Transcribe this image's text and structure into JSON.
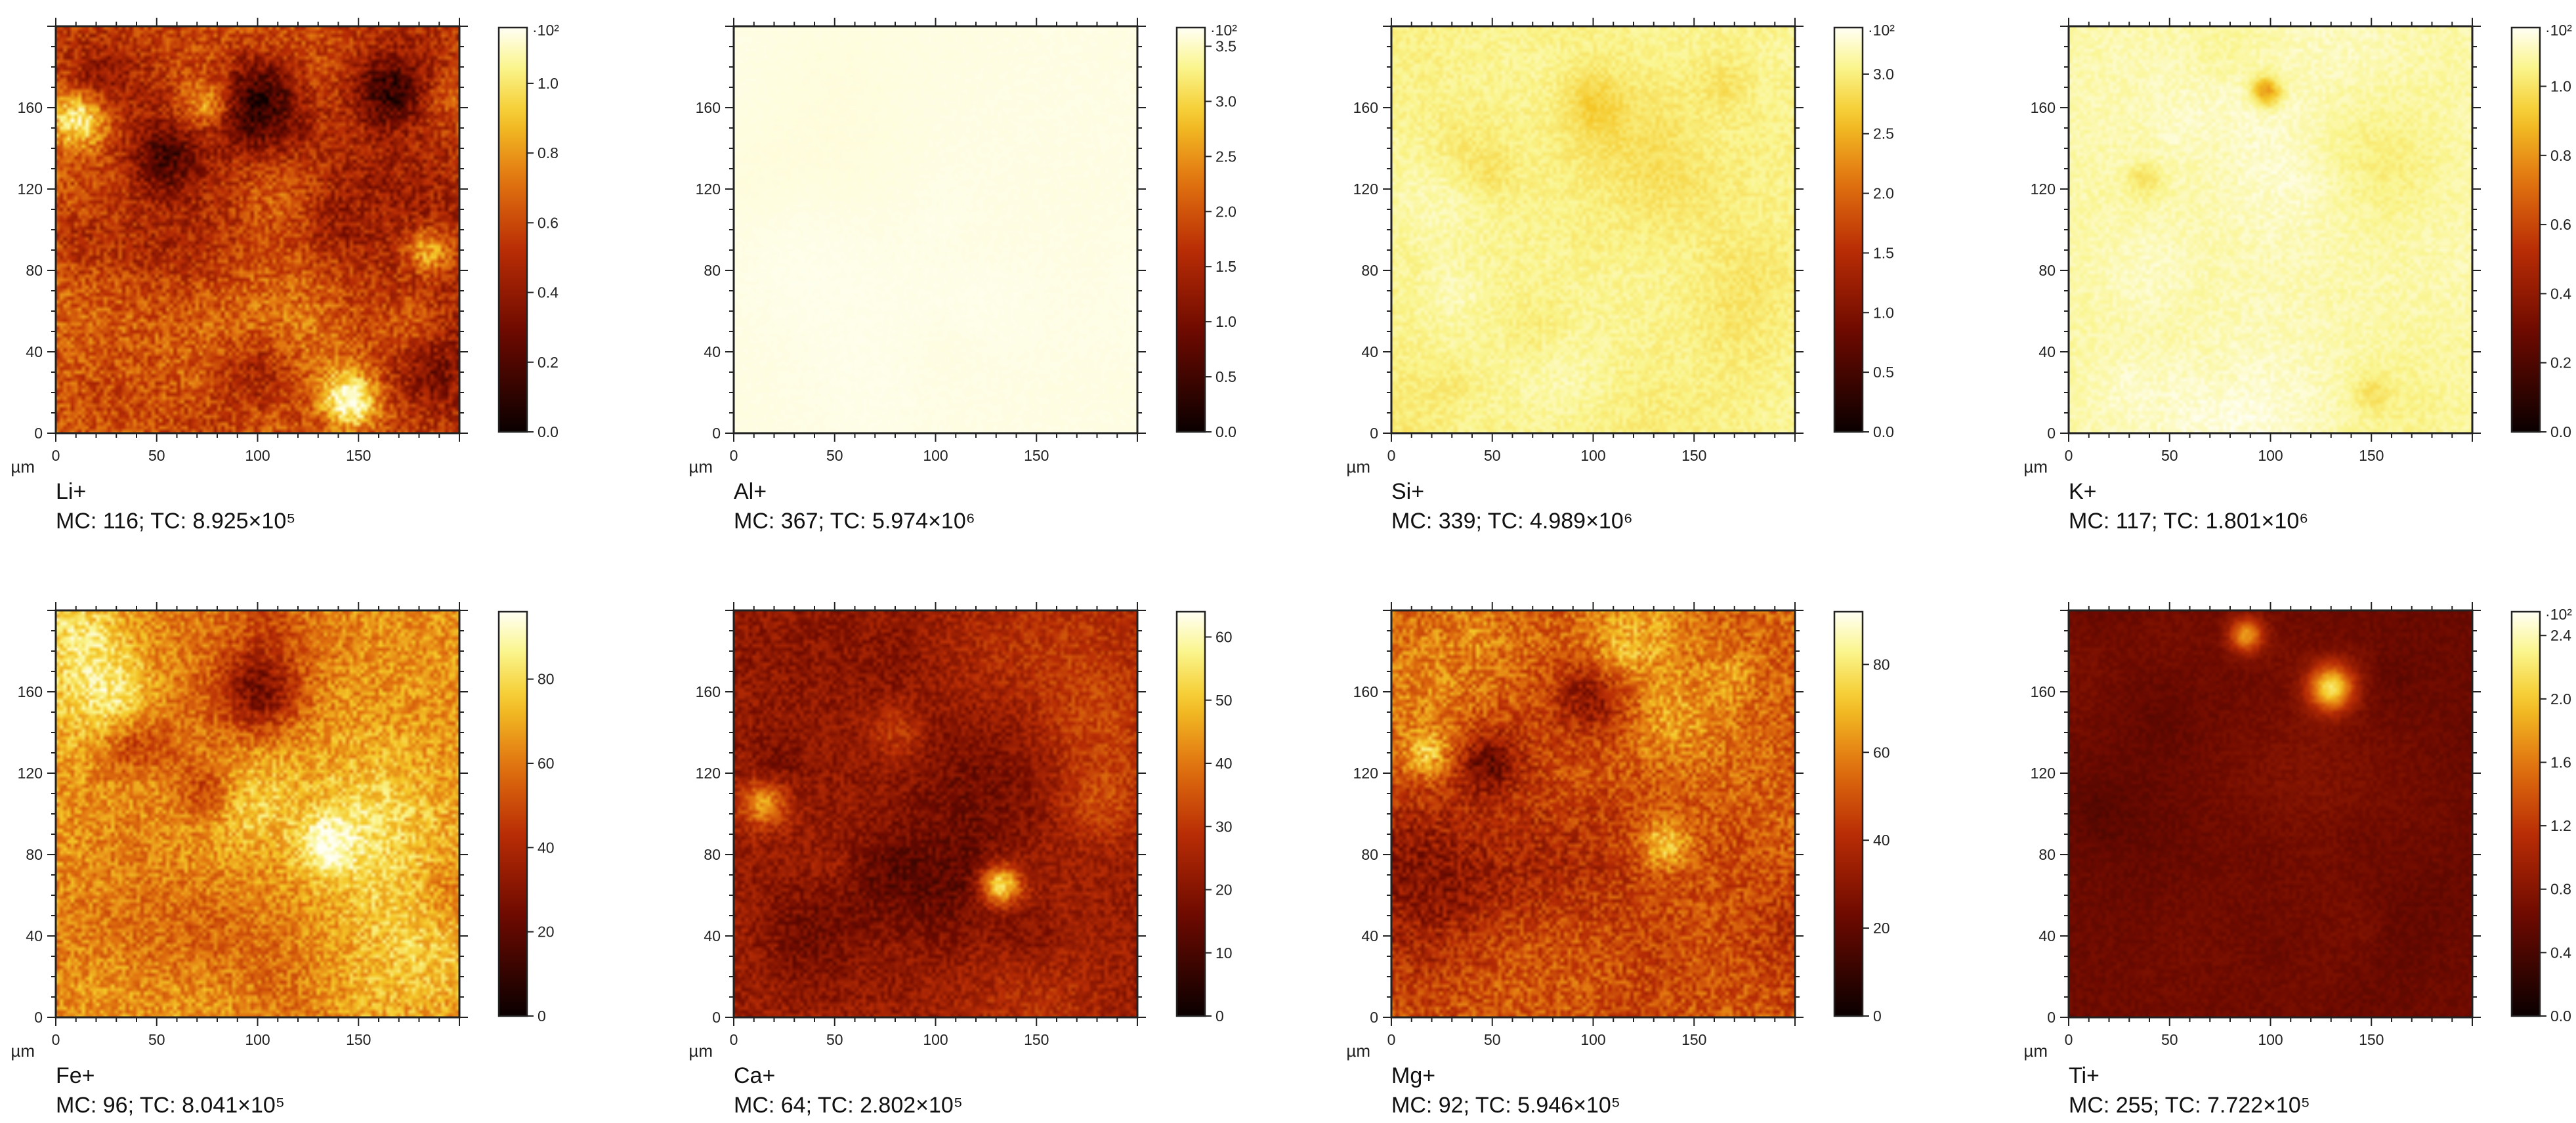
{
  "chart_data": [
    {
      "type": "heatmap",
      "label": "Li+",
      "stats": "MC:   116; TC: 8.925×10⁵",
      "unit": "µm",
      "x_ticks": [
        "0",
        "50",
        "100",
        "150"
      ],
      "y_ticks": [
        "0",
        "40",
        "80",
        "120",
        "160"
      ],
      "xlim": [
        0,
        200
      ],
      "ylim": [
        0,
        200
      ],
      "colorbar": {
        "min": 0,
        "max": 1.16,
        "ticks": [
          "0.0",
          "0.2",
          "0.4",
          "0.6",
          "0.8",
          "1.0"
        ],
        "exponent_label": "·10²"
      },
      "mean_level": 0.55,
      "texture": 0.32,
      "hotspots": [
        {
          "x": 12,
          "y": 155,
          "r": 10,
          "v": 0.45
        },
        {
          "x": 145,
          "y": 16,
          "r": 10,
          "v": 0.5
        },
        {
          "x": 185,
          "y": 90,
          "r": 8,
          "v": 0.35
        },
        {
          "x": 75,
          "y": 162,
          "r": 8,
          "v": 0.3
        },
        {
          "x": 100,
          "y": 160,
          "r": 16,
          "v": -0.35
        },
        {
          "x": 165,
          "y": 168,
          "r": 12,
          "v": -0.35
        },
        {
          "x": 55,
          "y": 135,
          "r": 12,
          "v": -0.3
        },
        {
          "x": 100,
          "y": 30,
          "r": 14,
          "v": -0.25
        }
      ]
    },
    {
      "type": "heatmap",
      "label": "Al+",
      "stats": "MC:   367; TC: 5.974×10⁶",
      "unit": "µm",
      "x_ticks": [
        "0",
        "50",
        "100",
        "150"
      ],
      "y_ticks": [
        "0",
        "40",
        "80",
        "120",
        "160"
      ],
      "xlim": [
        0,
        200
      ],
      "ylim": [
        0,
        200
      ],
      "colorbar": {
        "min": 0,
        "max": 3.67,
        "ticks": [
          "0.0",
          "0.5",
          "1.0",
          "1.5",
          "2.0",
          "2.5",
          "3.0",
          "3.5"
        ],
        "exponent_label": "·10²"
      },
      "mean_level": 0.985,
      "texture": 0.01,
      "hotspots": []
    },
    {
      "type": "heatmap",
      "label": "Si+",
      "stats": "MC:   339; TC: 4.989×10⁶",
      "unit": "µm",
      "x_ticks": [
        "0",
        "50",
        "100",
        "150"
      ],
      "y_ticks": [
        "0",
        "40",
        "80",
        "120",
        "160"
      ],
      "xlim": [
        0,
        200
      ],
      "ylim": [
        0,
        200
      ],
      "colorbar": {
        "min": 0,
        "max": 3.39,
        "ticks": [
          "0.0",
          "0.5",
          "1.0",
          "1.5",
          "2.0",
          "2.5",
          "3.0"
        ],
        "exponent_label": "·10²"
      },
      "mean_level": 0.9,
      "texture": 0.08,
      "hotspots": [
        {
          "x": 100,
          "y": 165,
          "r": 10,
          "v": -0.06
        },
        {
          "x": 48,
          "y": 128,
          "r": 10,
          "v": -0.05
        },
        {
          "x": 165,
          "y": 172,
          "r": 8,
          "v": -0.04
        }
      ]
    },
    {
      "type": "heatmap",
      "label": "K+",
      "stats": "MC:   117; TC: 1.801×10⁶",
      "unit": "µm",
      "x_ticks": [
        "0",
        "50",
        "100",
        "150"
      ],
      "y_ticks": [
        "0",
        "40",
        "80",
        "120",
        "160"
      ],
      "xlim": [
        0,
        200
      ],
      "ylim": [
        0,
        200
      ],
      "colorbar": {
        "min": 0,
        "max": 1.17,
        "ticks": [
          "0.0",
          "0.2",
          "0.4",
          "0.6",
          "0.8",
          "1.0"
        ],
        "exponent_label": "·10²"
      },
      "mean_level": 0.93,
      "texture": 0.07,
      "hotspots": [
        {
          "x": 98,
          "y": 168,
          "r": 5,
          "v": -0.25
        },
        {
          "x": 38,
          "y": 125,
          "r": 6,
          "v": -0.08
        },
        {
          "x": 150,
          "y": 20,
          "r": 6,
          "v": -0.07
        }
      ]
    },
    {
      "type": "heatmap",
      "label": "Fe+",
      "stats": "MC:    96; TC: 8.041×10⁵",
      "unit": "µm",
      "x_ticks": [
        "0",
        "50",
        "100",
        "150"
      ],
      "y_ticks": [
        "0",
        "40",
        "80",
        "120",
        "160"
      ],
      "xlim": [
        0,
        200
      ],
      "ylim": [
        0,
        200
      ],
      "colorbar": {
        "min": 0,
        "max": 96,
        "ticks": [
          "0",
          "20",
          "40",
          "60",
          "80"
        ],
        "exponent_label": ""
      },
      "mean_level": 0.68,
      "texture": 0.28,
      "hotspots": [
        {
          "x": 135,
          "y": 85,
          "r": 10,
          "v": 0.25
        },
        {
          "x": 100,
          "y": 160,
          "r": 14,
          "v": -0.3
        },
        {
          "x": 40,
          "y": 130,
          "r": 12,
          "v": -0.25
        },
        {
          "x": 75,
          "y": 110,
          "r": 10,
          "v": -0.2
        }
      ]
    },
    {
      "type": "heatmap",
      "label": "Ca+",
      "stats": "MC:    64; TC: 2.802×10⁵",
      "unit": "µm",
      "x_ticks": [
        "0",
        "50",
        "100",
        "150"
      ],
      "y_ticks": [
        "0",
        "40",
        "80",
        "120",
        "160"
      ],
      "xlim": [
        0,
        200
      ],
      "ylim": [
        0,
        200
      ],
      "colorbar": {
        "min": 0,
        "max": 64,
        "ticks": [
          "0",
          "10",
          "20",
          "30",
          "40",
          "50",
          "60"
        ],
        "exponent_label": ""
      },
      "mean_level": 0.36,
      "texture": 0.22,
      "hotspots": [
        {
          "x": 132,
          "y": 65,
          "r": 7,
          "v": 0.55
        },
        {
          "x": 15,
          "y": 105,
          "r": 8,
          "v": 0.35
        },
        {
          "x": 80,
          "y": 140,
          "r": 10,
          "v": 0.15
        }
      ]
    },
    {
      "type": "heatmap",
      "label": "Mg+",
      "stats": "MC:    92; TC: 5.946×10⁵",
      "unit": "µm",
      "x_ticks": [
        "0",
        "50",
        "100",
        "150"
      ],
      "y_ticks": [
        "0",
        "40",
        "80",
        "120",
        "160"
      ],
      "xlim": [
        0,
        200
      ],
      "ylim": [
        0,
        200
      ],
      "colorbar": {
        "min": 0,
        "max": 92,
        "ticks": [
          "0",
          "20",
          "40",
          "60",
          "80"
        ],
        "exponent_label": ""
      },
      "mean_level": 0.55,
      "texture": 0.3,
      "hotspots": [
        {
          "x": 135,
          "y": 85,
          "r": 9,
          "v": 0.3
        },
        {
          "x": 18,
          "y": 130,
          "r": 8,
          "v": 0.25
        },
        {
          "x": 100,
          "y": 160,
          "r": 14,
          "v": -0.3
        },
        {
          "x": 48,
          "y": 125,
          "r": 10,
          "v": -0.25
        }
      ]
    },
    {
      "type": "heatmap",
      "label": "Ti+",
      "stats": "MC:   255; TC: 7.722×10⁵",
      "unit": "µm",
      "x_ticks": [
        "0",
        "50",
        "100",
        "150"
      ],
      "y_ticks": [
        "0",
        "40",
        "80",
        "120",
        "160"
      ],
      "xlim": [
        0,
        200
      ],
      "ylim": [
        0,
        200
      ],
      "colorbar": {
        "min": 0,
        "max": 2.55,
        "ticks": [
          "0.0",
          "0.4",
          "0.8",
          "1.2",
          "1.6",
          "2.0",
          "2.4"
        ],
        "exponent_label": "·10²"
      },
      "mean_level": 0.25,
      "texture": 0.08,
      "hotspots": [
        {
          "x": 130,
          "y": 162,
          "r": 8,
          "v": 0.6
        },
        {
          "x": 88,
          "y": 188,
          "r": 6,
          "v": 0.45
        }
      ]
    }
  ]
}
